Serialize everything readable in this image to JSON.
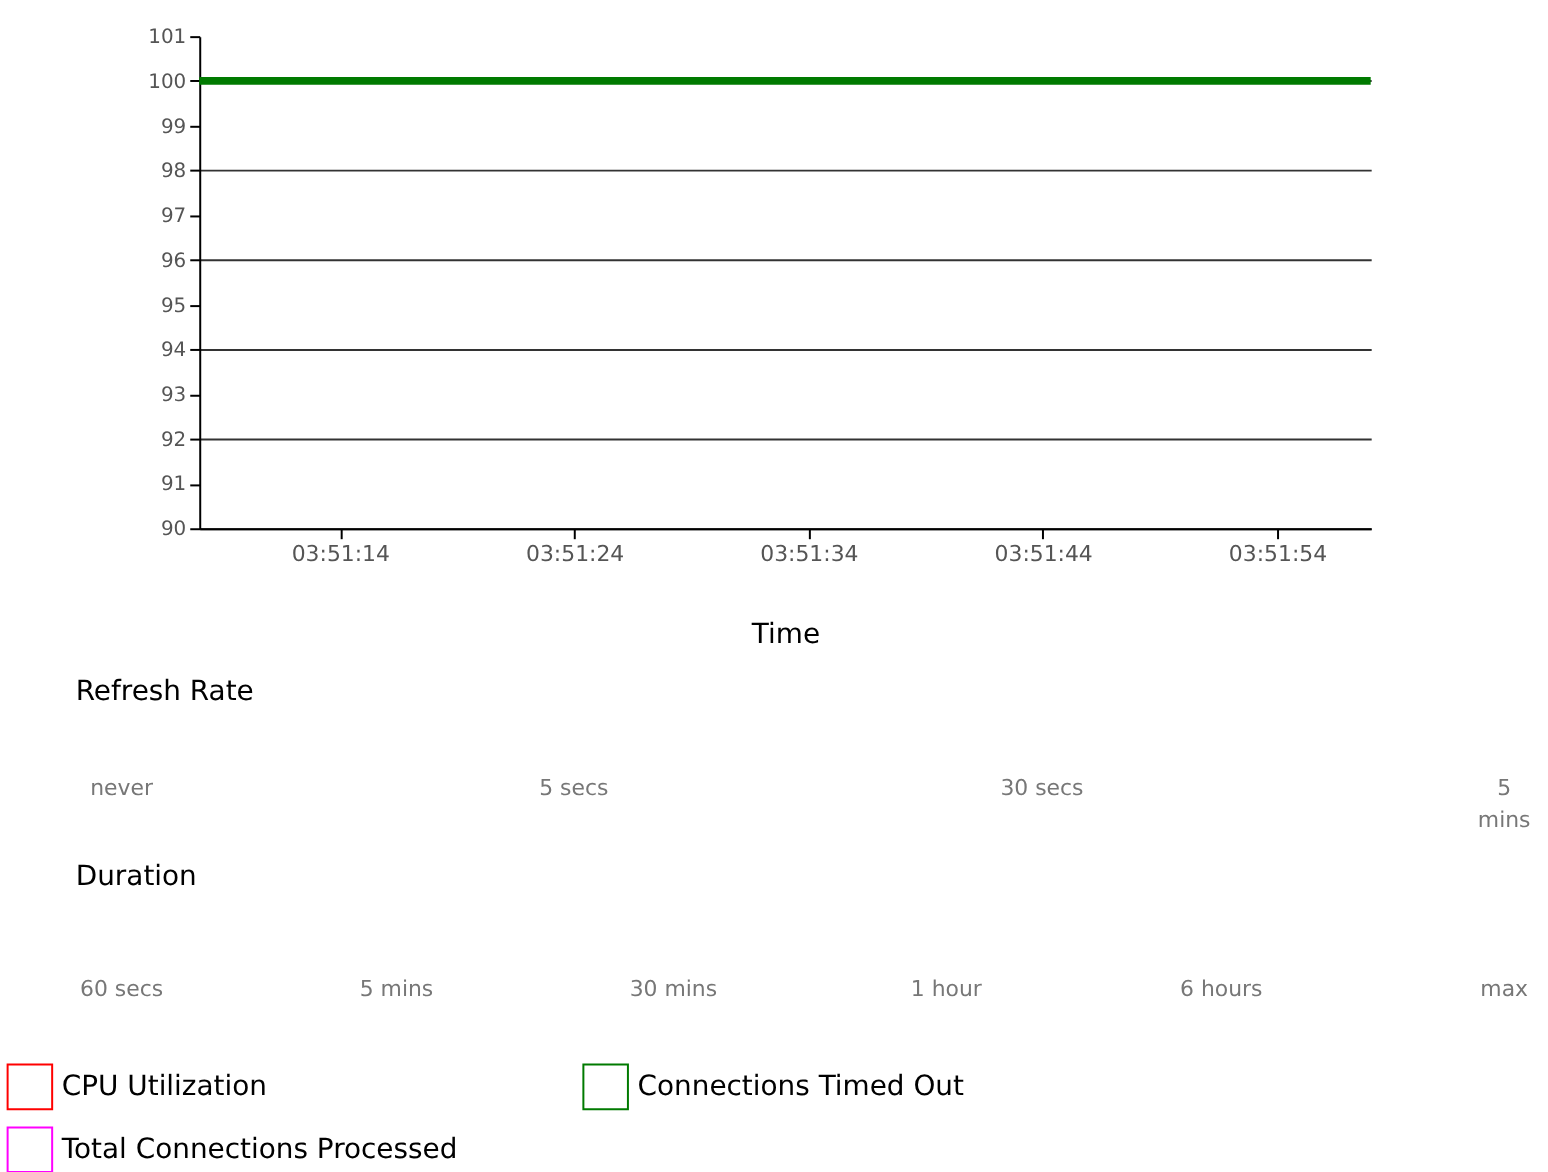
{
  "chart_data": {
    "type": "line",
    "xlabel": "Time",
    "x": [
      3.852222,
      3.866111
    ],
    "series": [
      {
        "name": "CPU Utilization",
        "color": "#ff0000",
        "values": [
          null,
          null
        ]
      },
      {
        "name": "Total Connections Processed",
        "color": "#ff00ff",
        "values": [
          null,
          null
        ]
      },
      {
        "name": "Connections Timed Out",
        "color": "#007a00",
        "values": [
          100,
          100
        ]
      }
    ],
    "xlim": [
      3.852222,
      3.866111
    ],
    "xticks": [
      {
        "value": 3.853889,
        "label": "03:51:14"
      },
      {
        "value": 3.856667,
        "label": "03:51:24"
      },
      {
        "value": 3.859444,
        "label": "03:51:34"
      },
      {
        "value": 3.862222,
        "label": "03:51:44"
      },
      {
        "value": 3.865,
        "label": "03:51:54"
      }
    ],
    "ylim": [
      90,
      101
    ],
    "yticks": [
      90,
      91,
      92,
      93,
      94,
      95,
      96,
      97,
      98,
      99,
      100,
      101
    ],
    "grid": "y",
    "legend": "bottom",
    "marker": "none",
    "line_style": "solid",
    "annotations": [
      "Refresh Rate",
      "never",
      "5 secs",
      "30 secs",
      "5 mins",
      "Duration",
      "60 secs",
      "5 mins",
      "30 mins",
      "1 hour",
      "6 hours",
      "max"
    ]
  }
}
